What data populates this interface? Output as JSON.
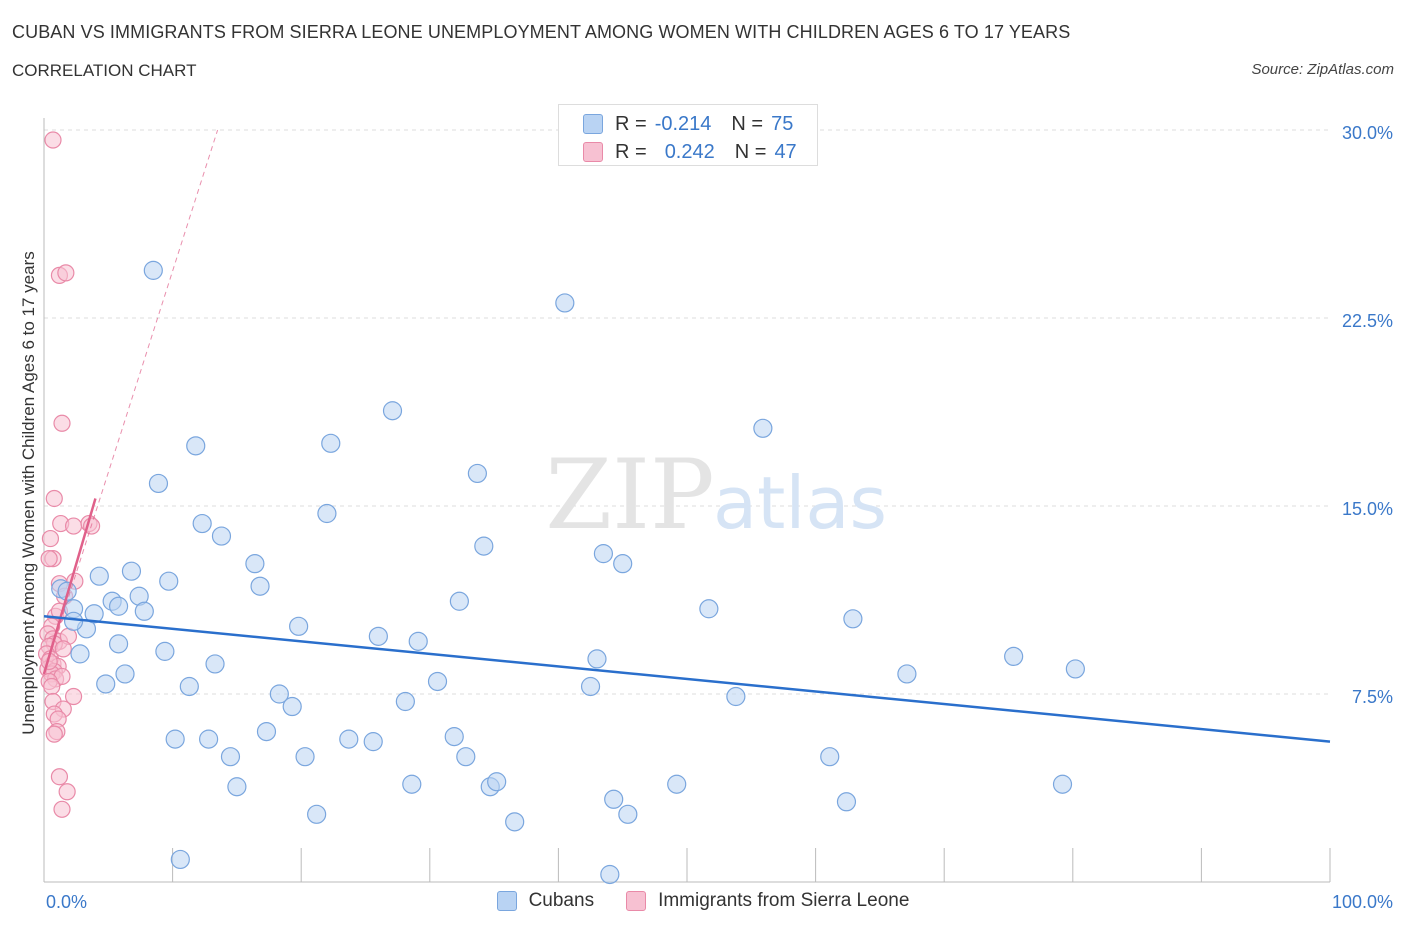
{
  "header": {
    "title": "CUBAN VS IMMIGRANTS FROM SIERRA LEONE UNEMPLOYMENT AMONG WOMEN WITH CHILDREN AGES 6 TO 17 YEARS",
    "subtitle": "CORRELATION CHART",
    "source": "Source: ZipAtlas.com"
  },
  "legend": {
    "rows": [
      {
        "r_label": "R =",
        "r_value": "-0.214",
        "n_label": "N =",
        "n_value": "75"
      },
      {
        "r_label": "R =",
        "r_value": "0.242",
        "n_label": "N =",
        "n_value": "47"
      }
    ]
  },
  "watermark": {
    "zip": "ZIP",
    "atlas": "atlas"
  },
  "colors": {
    "cubans_fill": "#b9d3f3",
    "cubans_stroke": "#7aa6de",
    "cubans_line": "#2a6fcc",
    "sl_fill": "#f7c1d2",
    "sl_stroke": "#e98aa8",
    "sl_line": "#e0608a",
    "axis_label_color": "#3a78c9",
    "grid": "#dddddd"
  },
  "chart_data": {
    "type": "scatter",
    "ylabel": "Unemployment Among Women with Children Ages 6 to 17 years",
    "xlim": [
      0,
      100
    ],
    "ylim": [
      0,
      30
    ],
    "x_tick_labels": {
      "left": "0.0%",
      "right": "100.0%"
    },
    "y_ticks": [
      {
        "value": 7.5,
        "label": "7.5%"
      },
      {
        "value": 15,
        "label": "15.0%"
      },
      {
        "value": 22.5,
        "label": "22.5%"
      },
      {
        "value": 30,
        "label": "30.0%"
      }
    ],
    "series": [
      {
        "name": "Cubans",
        "R": -0.214,
        "N": 75,
        "trend": {
          "x": [
            0,
            100
          ],
          "y": [
            10.6,
            5.6
          ]
        },
        "points": [
          [
            1.3,
            11.7
          ],
          [
            1.8,
            11.6
          ],
          [
            2.3,
            10.9
          ],
          [
            3.3,
            10.1
          ],
          [
            2.8,
            9.1
          ],
          [
            3.9,
            10.7
          ],
          [
            4.3,
            12.2
          ],
          [
            4.8,
            7.9
          ],
          [
            5.3,
            11.2
          ],
          [
            5.8,
            9.5
          ],
          [
            6.3,
            8.3
          ],
          [
            6.8,
            12.4
          ],
          [
            7.4,
            11.4
          ],
          [
            7.8,
            10.8
          ],
          [
            8.5,
            24.4
          ],
          [
            8.9,
            15.9
          ],
          [
            9.4,
            9.2
          ],
          [
            9.7,
            12.0
          ],
          [
            10.2,
            5.7
          ],
          [
            11.3,
            7.8
          ],
          [
            11.8,
            17.4
          ],
          [
            12.3,
            14.3
          ],
          [
            12.8,
            5.7
          ],
          [
            13.3,
            8.7
          ],
          [
            13.8,
            13.8
          ],
          [
            14.5,
            5.0
          ],
          [
            15.0,
            3.8
          ],
          [
            16.4,
            12.7
          ],
          [
            16.8,
            11.8
          ],
          [
            17.3,
            6.0
          ],
          [
            18.3,
            7.5
          ],
          [
            19.3,
            7.0
          ],
          [
            19.8,
            10.2
          ],
          [
            20.3,
            5.0
          ],
          [
            21.2,
            2.7
          ],
          [
            22.0,
            14.7
          ],
          [
            22.3,
            17.5
          ],
          [
            23.7,
            5.7
          ],
          [
            25.6,
            5.6
          ],
          [
            26.0,
            9.8
          ],
          [
            27.1,
            18.8
          ],
          [
            28.1,
            7.2
          ],
          [
            28.6,
            3.9
          ],
          [
            29.1,
            9.6
          ],
          [
            30.6,
            8.0
          ],
          [
            31.9,
            5.8
          ],
          [
            32.3,
            11.2
          ],
          [
            32.8,
            5.0
          ],
          [
            33.7,
            16.3
          ],
          [
            34.2,
            13.4
          ],
          [
            34.7,
            3.8
          ],
          [
            35.2,
            4.0
          ],
          [
            36.6,
            2.4
          ],
          [
            40.5,
            23.1
          ],
          [
            42.5,
            7.8
          ],
          [
            43.0,
            8.9
          ],
          [
            43.5,
            13.1
          ],
          [
            44.0,
            0.3
          ],
          [
            44.3,
            3.3
          ],
          [
            45.0,
            12.7
          ],
          [
            45.4,
            2.7
          ],
          [
            49.2,
            3.9
          ],
          [
            51.7,
            10.9
          ],
          [
            53.8,
            7.4
          ],
          [
            55.9,
            18.1
          ],
          [
            61.1,
            5.0
          ],
          [
            62.4,
            3.2
          ],
          [
            62.9,
            10.5
          ],
          [
            67.1,
            8.3
          ],
          [
            75.4,
            9.0
          ],
          [
            79.2,
            3.9
          ],
          [
            80.2,
            8.5
          ],
          [
            10.6,
            0.9
          ],
          [
            2.3,
            10.4
          ],
          [
            5.8,
            11.0
          ]
        ]
      },
      {
        "name": "Immigrants from Sierra Leone",
        "R": 0.242,
        "N": 47,
        "trend": {
          "x": [
            0,
            4
          ],
          "y": [
            8.3,
            15.3
          ]
        },
        "trend_extended": {
          "x": [
            0,
            13.5
          ],
          "y": [
            8.3,
            30.0
          ]
        },
        "points": [
          [
            0.7,
            29.6
          ],
          [
            1.2,
            24.2
          ],
          [
            1.7,
            24.3
          ],
          [
            1.4,
            18.3
          ],
          [
            0.8,
            15.3
          ],
          [
            1.3,
            14.3
          ],
          [
            2.3,
            14.2
          ],
          [
            3.5,
            14.3
          ],
          [
            3.7,
            14.2
          ],
          [
            0.5,
            13.7
          ],
          [
            0.7,
            12.9
          ],
          [
            0.4,
            12.9
          ],
          [
            1.2,
            11.9
          ],
          [
            2.4,
            12.0
          ],
          [
            1.6,
            11.4
          ],
          [
            0.9,
            10.6
          ],
          [
            1.2,
            10.8
          ],
          [
            0.6,
            10.2
          ],
          [
            0.3,
            9.9
          ],
          [
            0.7,
            9.7
          ],
          [
            1.2,
            9.6
          ],
          [
            1.9,
            9.8
          ],
          [
            0.8,
            9.5
          ],
          [
            0.4,
            9.4
          ],
          [
            1.5,
            9.3
          ],
          [
            0.2,
            9.1
          ],
          [
            0.5,
            8.9
          ],
          [
            0.7,
            8.7
          ],
          [
            1.1,
            8.6
          ],
          [
            0.3,
            8.5
          ],
          [
            0.8,
            8.4
          ],
          [
            0.6,
            8.3
          ],
          [
            0.9,
            8.1
          ],
          [
            1.4,
            8.2
          ],
          [
            0.4,
            8.0
          ],
          [
            0.6,
            7.8
          ],
          [
            2.3,
            7.4
          ],
          [
            0.7,
            7.2
          ],
          [
            1.5,
            6.9
          ],
          [
            0.8,
            6.7
          ],
          [
            1.1,
            6.5
          ],
          [
            1.0,
            6.0
          ],
          [
            0.8,
            5.9
          ],
          [
            1.2,
            4.2
          ],
          [
            1.8,
            3.6
          ],
          [
            1.4,
            2.9
          ],
          [
            0.4,
            8.8
          ]
        ]
      }
    ]
  },
  "bottom_legend": [
    {
      "label": "Cubans"
    },
    {
      "label": "Immigrants from Sierra Leone"
    }
  ]
}
